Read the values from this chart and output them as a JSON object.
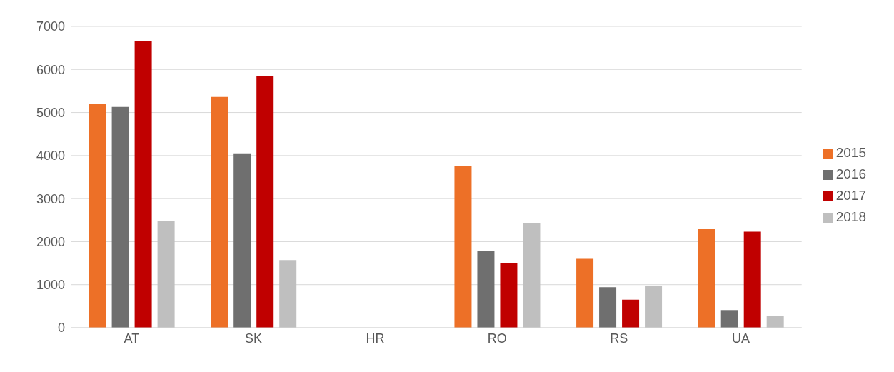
{
  "chart_data": {
    "type": "bar",
    "categories": [
      "AT",
      "SK",
      "HR",
      "RO",
      "RS",
      "UA"
    ],
    "series": [
      {
        "name": "2015",
        "color": "#ed7027",
        "values": [
          5210,
          5360,
          null,
          3750,
          1600,
          2290
        ]
      },
      {
        "name": "2016",
        "color": "#6f6f6f",
        "values": [
          5130,
          4050,
          null,
          1780,
          940,
          410
        ]
      },
      {
        "name": "2017",
        "color": "#c00000",
        "values": [
          6650,
          5840,
          null,
          1510,
          650,
          2230
        ]
      },
      {
        "name": "2018",
        "color": "#bfbfbf",
        "values": [
          2480,
          1570,
          null,
          2420,
          970,
          270
        ]
      }
    ],
    "ylim": [
      0,
      7000
    ],
    "yticks": [
      0,
      1000,
      2000,
      3000,
      4000,
      5000,
      6000,
      7000
    ],
    "grid": "y",
    "legend": "right"
  }
}
